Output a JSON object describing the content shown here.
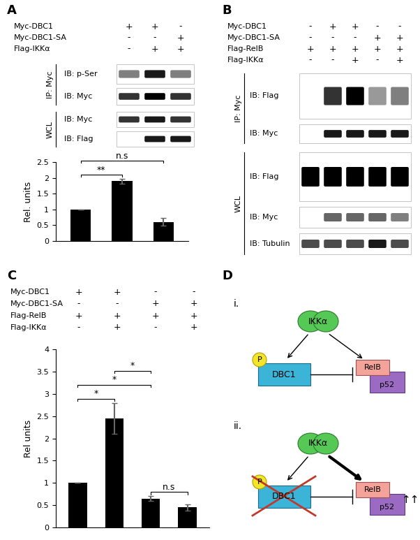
{
  "panels": {
    "A": {
      "label": "A",
      "conditions": [
        {
          "name": "Myc-DBC1",
          "lanes": [
            "+",
            "+",
            "-"
          ]
        },
        {
          "name": "Myc-DBC1-SA",
          "lanes": [
            "-",
            "-",
            "+"
          ]
        },
        {
          "name": "Flag-IKKα",
          "lanes": [
            "-",
            "+",
            "+"
          ]
        }
      ],
      "blots": [
        {
          "group": "IP: Myc",
          "rows": [
            "IB: p-Ser",
            "IB: Myc"
          ]
        },
        {
          "group": "WCL",
          "rows": [
            "IB: Myc",
            "IB: Flag"
          ]
        }
      ]
    },
    "B": {
      "label": "B",
      "conditions": [
        {
          "name": "Myc-DBC1",
          "lanes": [
            "-",
            "+",
            "+",
            "-",
            "-"
          ]
        },
        {
          "name": "Myc-DBC1-SA",
          "lanes": [
            "-",
            "-",
            "-",
            "+",
            "+"
          ]
        },
        {
          "name": "Flag-RelB",
          "lanes": [
            "+",
            "+",
            "+",
            "+",
            "+"
          ]
        },
        {
          "name": "Flag-IKKα",
          "lanes": [
            "-",
            "-",
            "+",
            "-",
            "+"
          ]
        }
      ],
      "blots": [
        {
          "group": "IP: Myc",
          "rows": [
            "IB: Flag",
            "IB: Myc"
          ]
        },
        {
          "group": "WCL",
          "rows": [
            "IB: Flag",
            "IB: Myc",
            "IB: Tubulin"
          ]
        }
      ]
    },
    "C": {
      "label": "C",
      "conditions": [
        {
          "name": "Myc-DBC1",
          "lanes": [
            "+",
            "+",
            "-",
            "-"
          ]
        },
        {
          "name": "Myc-DBC1-SA",
          "lanes": [
            "-",
            "-",
            "+",
            "+"
          ]
        },
        {
          "name": "Flag-RelB",
          "lanes": [
            "+",
            "+",
            "+",
            "+"
          ]
        },
        {
          "name": "Flag-IKKα",
          "lanes": [
            "-",
            "+",
            "-",
            "+"
          ]
        }
      ]
    },
    "D": {
      "label": "D",
      "schemes": [
        {
          "label": "i.",
          "kinase": "IKKα",
          "substrate": "DBC1",
          "phospho": "P",
          "complex": [
            "RelB",
            "p52"
          ]
        },
        {
          "label": "ii.",
          "kinase": "IKKα",
          "substrate": "DBC1",
          "phospho": "P",
          "complex": [
            "RelB",
            "p52"
          ],
          "effect": "↑↑"
        }
      ]
    }
  },
  "chart_data": [
    {
      "type": "bar",
      "categories": [
        null,
        null,
        null
      ],
      "values": [
        1,
        1.9,
        0.6
      ],
      "errors": [
        0,
        0.08,
        0.12
      ],
      "color": "#000000",
      "ylim": [
        0,
        2.5
      ],
      "yticks": [
        0,
        0.5,
        1,
        1.5,
        2,
        2.5
      ],
      "y_label": "Rel. units",
      "tick_labels": "y",
      "annotations": [
        {
          "text": "**",
          "from": 0,
          "to": 1
        },
        {
          "text": "n.s",
          "from": 0,
          "to": 2
        }
      ]
    },
    {
      "type": "bar",
      "categories": [
        null,
        null,
        null,
        null
      ],
      "values": [
        1,
        2.45,
        0.65,
        0.45
      ],
      "errors": [
        0,
        0.35,
        0.05,
        0.07
      ],
      "color": "#000000",
      "ylim": [
        0,
        4
      ],
      "yticks": [
        0,
        0.5,
        1,
        1.5,
        2,
        2.5,
        3,
        3.5,
        4
      ],
      "y_label": "Rel units",
      "tick_labels": "y",
      "annotations": [
        {
          "text": "*",
          "from": 0,
          "to": 1
        },
        {
          "text": "*",
          "from": 0,
          "to": 2
        },
        {
          "text": "*",
          "from": 1,
          "to": 2
        },
        {
          "text": "n.s",
          "from": 2,
          "to": 3
        }
      ]
    }
  ]
}
